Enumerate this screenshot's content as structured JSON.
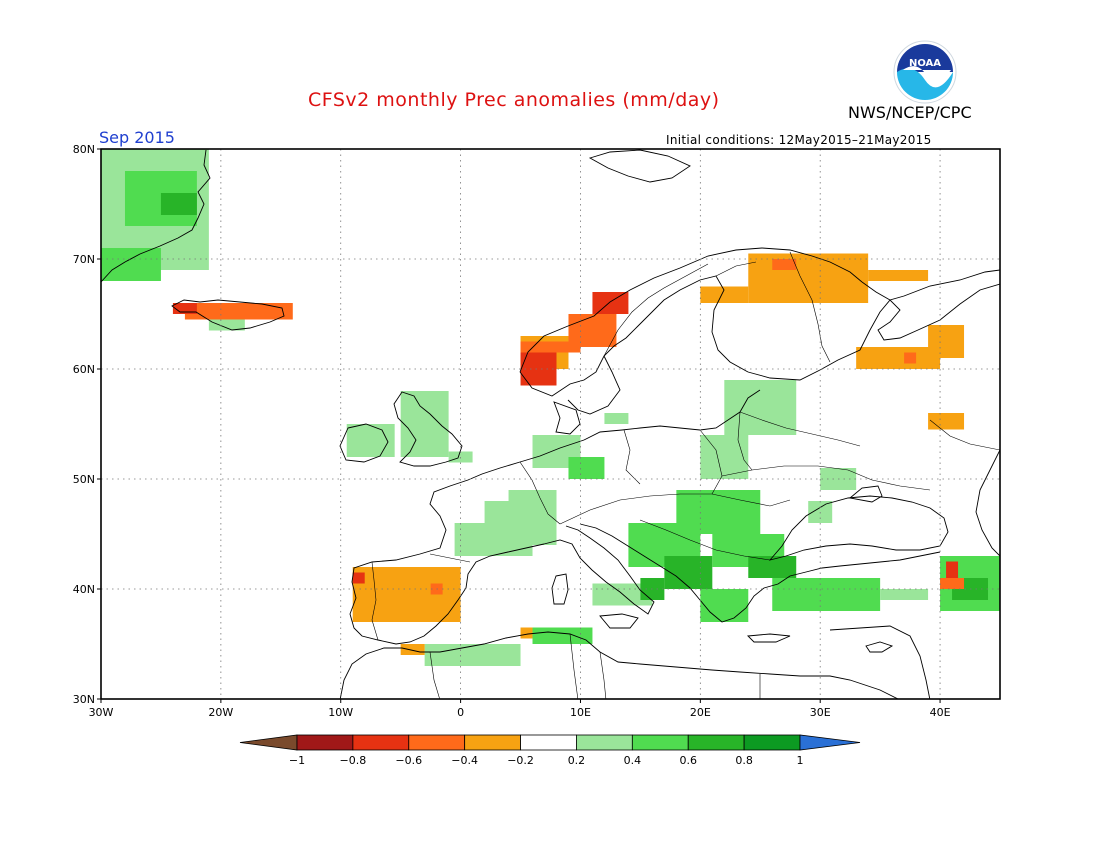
{
  "header": {
    "title": "CFSv2 monthly Prec anomalies (mm/day)",
    "agency": "NWS/NCEP/CPC",
    "month": "Sep 2015",
    "initial_conditions": "Initial conditions: 12May2015–21May2015"
  },
  "logo": {
    "text": "NOAA",
    "icon": "noaa-logo-icon"
  },
  "map": {
    "lon_range": [
      -30,
      45
    ],
    "lat_range": [
      30,
      80
    ],
    "lon_ticks": [
      {
        "lon": -30,
        "label": "30W"
      },
      {
        "lon": -20,
        "label": "20W"
      },
      {
        "lon": -10,
        "label": "10W"
      },
      {
        "lon": 0,
        "label": "0"
      },
      {
        "lon": 10,
        "label": "10E"
      },
      {
        "lon": 20,
        "label": "20E"
      },
      {
        "lon": 30,
        "label": "30E"
      },
      {
        "lon": 40,
        "label": "40E"
      }
    ],
    "lat_ticks": [
      {
        "lat": 80,
        "label": "80N"
      },
      {
        "lat": 70,
        "label": "70N"
      },
      {
        "lat": 60,
        "label": "60N"
      },
      {
        "lat": 50,
        "label": "50N"
      },
      {
        "lat": 40,
        "label": "40N"
      },
      {
        "lat": 30,
        "label": "30N"
      }
    ],
    "grid": "dotted",
    "anomaly_regions": [
      {
        "lon": [
          -30,
          -21
        ],
        "lat": [
          69,
          80
        ],
        "level": 0.3
      },
      {
        "lon": [
          -28,
          -22
        ],
        "lat": [
          73,
          78
        ],
        "level": 0.5
      },
      {
        "lon": [
          -25,
          -22
        ],
        "lat": [
          74,
          76
        ],
        "level": 0.7
      },
      {
        "lon": [
          -30,
          -25
        ],
        "lat": [
          68,
          71
        ],
        "level": 0.5
      },
      {
        "lon": [
          -23,
          -14
        ],
        "lat": [
          64.5,
          66
        ],
        "level": -0.5
      },
      {
        "lon": [
          -24,
          -22
        ],
        "lat": [
          65,
          66
        ],
        "level": -0.7
      },
      {
        "lon": [
          -21,
          -18
        ],
        "lat": [
          63.5,
          64.5
        ],
        "level": 0.3
      },
      {
        "lon": [
          -9.5,
          -5.5
        ],
        "lat": [
          52,
          55
        ],
        "level": 0.3
      },
      {
        "lon": [
          -5,
          -1
        ],
        "lat": [
          52,
          58
        ],
        "level": 0.3
      },
      {
        "lon": [
          -1,
          1
        ],
        "lat": [
          51.5,
          52.5
        ],
        "level": 0.3
      },
      {
        "lon": [
          2,
          6
        ],
        "lat": [
          43,
          48
        ],
        "level": 0.3
      },
      {
        "lon": [
          -0.5,
          3
        ],
        "lat": [
          43,
          46
        ],
        "level": 0.3
      },
      {
        "lon": [
          4,
          8
        ],
        "lat": [
          44,
          49
        ],
        "level": 0.3
      },
      {
        "lon": [
          6,
          10
        ],
        "lat": [
          51,
          54
        ],
        "level": 0.3
      },
      {
        "lon": [
          9,
          12
        ],
        "lat": [
          50,
          52
        ],
        "level": 0.4
      },
      {
        "lon": [
          12,
          14
        ],
        "lat": [
          55,
          56
        ],
        "level": 0.3
      },
      {
        "lon": [
          5,
          9
        ],
        "lat": [
          60,
          63
        ],
        "level": -0.3
      },
      {
        "lon": [
          5,
          10
        ],
        "lat": [
          61.5,
          62.5
        ],
        "level": -0.6
      },
      {
        "lon": [
          9,
          13
        ],
        "lat": [
          62,
          65
        ],
        "level": -0.5
      },
      {
        "lon": [
          11,
          14
        ],
        "lat": [
          65,
          67
        ],
        "level": -0.7
      },
      {
        "lon": [
          5,
          8
        ],
        "lat": [
          58.5,
          61.5
        ],
        "level": -0.8
      },
      {
        "lon": [
          24,
          34
        ],
        "lat": [
          66,
          70.5
        ],
        "level": -0.3
      },
      {
        "lon": [
          26,
          28
        ],
        "lat": [
          69,
          70
        ],
        "level": -0.6
      },
      {
        "lon": [
          20,
          24
        ],
        "lat": [
          66,
          67.5
        ],
        "level": -0.3
      },
      {
        "lon": [
          34,
          39
        ],
        "lat": [
          68,
          69
        ],
        "level": -0.3
      },
      {
        "lon": [
          33,
          40
        ],
        "lat": [
          60,
          62
        ],
        "level": -0.3
      },
      {
        "lon": [
          37,
          38
        ],
        "lat": [
          60.5,
          61.5
        ],
        "level": -0.6
      },
      {
        "lon": [
          39,
          42
        ],
        "lat": [
          61,
          64
        ],
        "level": -0.3
      },
      {
        "lon": [
          39,
          42
        ],
        "lat": [
          54.5,
          56
        ],
        "level": -0.3
      },
      {
        "lon": [
          22,
          28
        ],
        "lat": [
          54,
          59
        ],
        "level": 0.3
      },
      {
        "lon": [
          20,
          24
        ],
        "lat": [
          50,
          54
        ],
        "level": 0.3
      },
      {
        "lon": [
          18,
          25
        ],
        "lat": [
          45,
          49
        ],
        "level": 0.4
      },
      {
        "lon": [
          14,
          20
        ],
        "lat": [
          42,
          46
        ],
        "level": 0.4
      },
      {
        "lon": [
          17,
          21
        ],
        "lat": [
          40,
          43
        ],
        "level": 0.6
      },
      {
        "lon": [
          21,
          27
        ],
        "lat": [
          42,
          45
        ],
        "level": 0.5
      },
      {
        "lon": [
          24,
          28
        ],
        "lat": [
          41,
          43
        ],
        "level": 0.6
      },
      {
        "lon": [
          20,
          24
        ],
        "lat": [
          37,
          40
        ],
        "level": 0.5
      },
      {
        "lon": [
          26,
          35
        ],
        "lat": [
          38,
          41
        ],
        "level": 0.4
      },
      {
        "lon": [
          35,
          39
        ],
        "lat": [
          39,
          40
        ],
        "level": 0.3
      },
      {
        "lon": [
          40,
          45
        ],
        "lat": [
          38,
          43
        ],
        "level": 0.5
      },
      {
        "lon": [
          41,
          44
        ],
        "lat": [
          39,
          41
        ],
        "level": 0.7
      },
      {
        "lon": [
          40.5,
          41.5
        ],
        "lat": [
          41,
          42.5
        ],
        "level": -0.8
      },
      {
        "lon": [
          40,
          42
        ],
        "lat": [
          40,
          41
        ],
        "level": -0.5
      },
      {
        "lon": [
          11,
          16
        ],
        "lat": [
          38.5,
          40.5
        ],
        "level": 0.3
      },
      {
        "lon": [
          15,
          17
        ],
        "lat": [
          39,
          41
        ],
        "level": 0.6
      },
      {
        "lon": [
          6,
          11
        ],
        "lat": [
          35,
          36.5
        ],
        "level": 0.4
      },
      {
        "lon": [
          -3,
          5
        ],
        "lat": [
          33,
          35
        ],
        "level": 0.3
      },
      {
        "lon": [
          5,
          6
        ],
        "lat": [
          35.5,
          36.5
        ],
        "level": -0.3
      },
      {
        "lon": [
          -5,
          -3
        ],
        "lat": [
          34,
          35
        ],
        "level": -0.3
      },
      {
        "lon": [
          -9,
          0
        ],
        "lat": [
          37,
          42
        ],
        "level": -0.4
      },
      {
        "lon": [
          -2.5,
          -1.5
        ],
        "lat": [
          39.5,
          40.5
        ],
        "level": -0.6
      },
      {
        "lon": [
          -9,
          -8
        ],
        "lat": [
          40.5,
          41.5
        ],
        "level": -0.7
      },
      {
        "lon": [
          30,
          33
        ],
        "lat": [
          49,
          51
        ],
        "level": 0.3
      },
      {
        "lon": [
          29,
          31
        ],
        "lat": [
          46,
          48
        ],
        "level": 0.3
      }
    ]
  },
  "colorbar": {
    "labels": [
      "−1",
      "−0.8",
      "−0.6",
      "−0.4",
      "−0.2",
      "0.2",
      "0.4",
      "0.6",
      "0.8",
      "1"
    ],
    "colors": [
      "#a01818",
      "#e63212",
      "#ff6a1a",
      "#f7a212",
      "#ffffff",
      "#9ae59a",
      "#50dc50",
      "#28b428",
      "#0c9a22"
    ],
    "below_color": "#7a4a2c",
    "above_color": "#2a70d6"
  }
}
